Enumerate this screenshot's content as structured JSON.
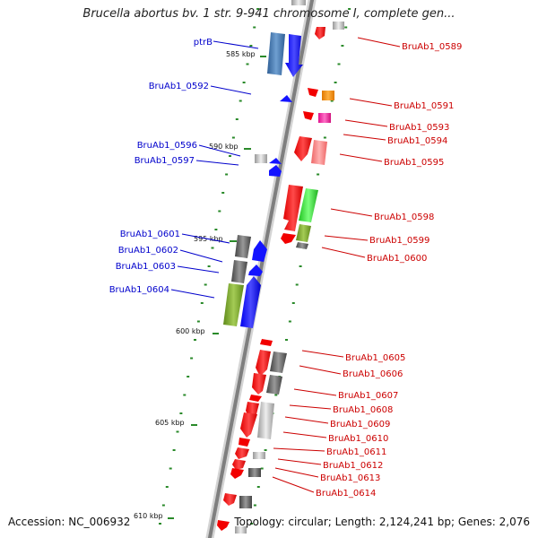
{
  "title": "Brucella abortus bv. 1 str. 9-941 chromosome I, complete gen...",
  "footer": {
    "accession": "Accession: NC_006932",
    "summary": "Topology: circular; Length: 2,124,241 bp; Genes: 2,076"
  },
  "ticks": [
    {
      "label": "585 kbp",
      "kbp": 585
    },
    {
      "label": "590 kbp",
      "kbp": 590
    },
    {
      "label": "595 kbp",
      "kbp": 595
    },
    {
      "label": "600 kbp",
      "kbp": 600
    },
    {
      "label": "605 kbp",
      "kbp": 605
    },
    {
      "label": "610 kbp",
      "kbp": 610
    }
  ],
  "colors": {
    "forward_label": "#0000cc",
    "reverse_label": "#cc0000",
    "backbone": "#888888",
    "tick": "#2a8a2a"
  },
  "genes_left": [
    {
      "label": "ptrB",
      "color": "#1a1aff",
      "feature": "blue-arrow"
    },
    {
      "label": "BruAb1_0592",
      "color": "#1a1aff",
      "feature": "blue-arrow"
    },
    {
      "label": "BruAb1_0596",
      "color": "#1a1aff",
      "feature": "grey-box"
    },
    {
      "label": "BruAb1_0597",
      "color": "#1a1aff",
      "feature": "blue-arrow"
    },
    {
      "label": "BruAb1_0601",
      "color": "#1a1aff",
      "feature": "grey-box"
    },
    {
      "label": "BruAb1_0602",
      "color": "#1a1aff",
      "feature": "blue-arrow"
    },
    {
      "label": "BruAb1_0603",
      "color": "#1a1aff",
      "feature": "grey-box"
    },
    {
      "label": "BruAb1_0604",
      "color": "#1a1aff",
      "feature": "blue-arrow"
    }
  ],
  "genes_right": [
    {
      "label": "BruAb1_0589"
    },
    {
      "label": "BruAb1_0591"
    },
    {
      "label": "BruAb1_0593"
    },
    {
      "label": "BruAb1_0594"
    },
    {
      "label": "BruAb1_0595"
    },
    {
      "label": "BruAb1_0598"
    },
    {
      "label": "BruAb1_0599"
    },
    {
      "label": "BruAb1_0600"
    },
    {
      "label": "BruAb1_0605"
    },
    {
      "label": "BruAb1_0606"
    },
    {
      "label": "BruAb1_0607"
    },
    {
      "label": "BruAb1_0608"
    },
    {
      "label": "BruAb1_0609"
    },
    {
      "label": "BruAb1_0610"
    },
    {
      "label": "BruAb1_0611"
    },
    {
      "label": "BruAb1_0612"
    },
    {
      "label": "BruAb1_0613"
    },
    {
      "label": "BruAb1_0614"
    }
  ]
}
